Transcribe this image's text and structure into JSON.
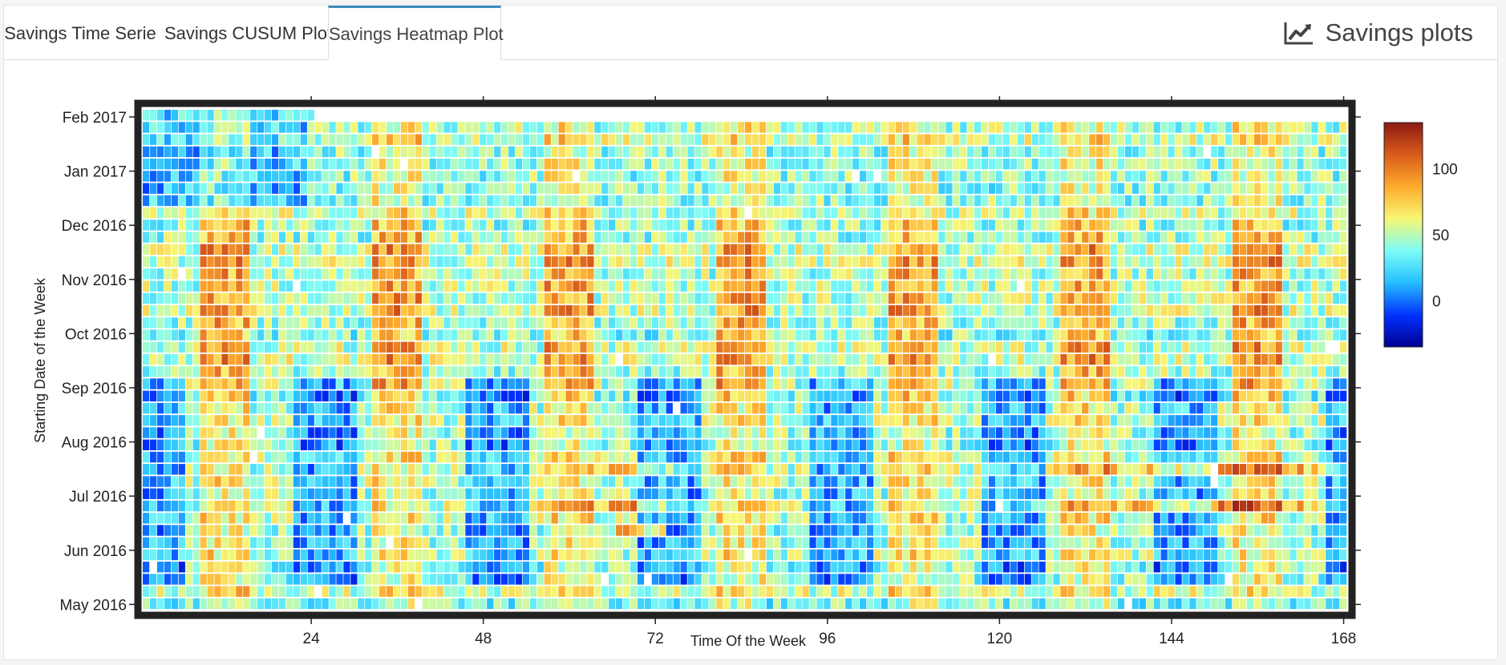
{
  "tabs": [
    {
      "label": "Savings Time Serie",
      "active": false
    },
    {
      "label": "Savings CUSUM Plot",
      "active": false
    },
    {
      "label": "Savings Heatmap Plot",
      "active": true
    }
  ],
  "header": {
    "title": "Savings plots",
    "icon": "line-chart-icon"
  },
  "colors": {
    "active_tab_border": "#3c8dbc",
    "frame": "#222222"
  },
  "chart_data": {
    "type": "heatmap",
    "title": "",
    "xlabel": "Time Of the Week",
    "ylabel": "Starting Date of the Week",
    "x_range": [
      1,
      168
    ],
    "x_ticks": [
      24,
      48,
      72,
      96,
      120,
      144,
      168
    ],
    "y_ticks": [
      "May 2016",
      "Jun 2016",
      "Jul 2016",
      "Aug 2016",
      "Sep 2016",
      "Oct 2016",
      "Nov 2016",
      "Dec 2016",
      "Jan 2017",
      "Feb 2017"
    ],
    "y_weeks_count": 41,
    "colorscale": {
      "range": [
        -35,
        135
      ],
      "ticks": [
        0,
        50,
        100
      ],
      "colors": [
        "#00008f",
        "#0030ff",
        "#27c1ff",
        "#7dfcf6",
        "#f7f775",
        "#ffae2e",
        "#d95a19",
        "#8b1a14"
      ]
    },
    "cell_values_note": "Cell values vary between approximately -30 and 130; blank cells are missing.",
    "grid": false,
    "legend": "colorbar-right"
  }
}
